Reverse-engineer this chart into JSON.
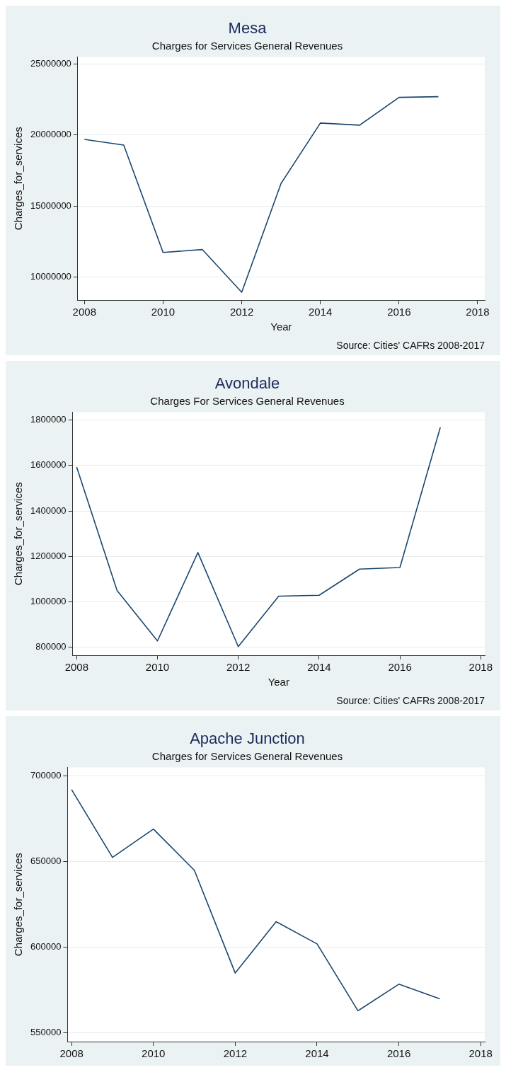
{
  "chart_data": [
    {
      "type": "line",
      "title": "Mesa",
      "subtitle": "Charges for Services General Revenues",
      "xlabel": "Year",
      "ylabel": "Charges_for_services",
      "x": [
        2008,
        2009,
        2010,
        2011,
        2012,
        2013,
        2014,
        2015,
        2016,
        2017
      ],
      "values": [
        19700000,
        19300000,
        11750000,
        11950000,
        8950000,
        16600000,
        20850000,
        20700000,
        22650000,
        22700000
      ],
      "color": "#1a476f",
      "xlim": [
        2007.83,
        2018.18
      ],
      "xticks": [
        2008,
        2010,
        2012,
        2014,
        2016,
        2018
      ],
      "ylim": [
        8400000,
        25500000
      ],
      "yticks": [
        10000000,
        15000000,
        20000000,
        25000000
      ],
      "grid": "y",
      "annotations": [
        "Source: Cities' CAFRs 2008-2017"
      ]
    },
    {
      "type": "line",
      "title": "Avondale",
      "subtitle": "Charges For Services General Revenues",
      "xlabel": "Year",
      "ylabel": "Charges_for_services",
      "x": [
        2008,
        2009,
        2010,
        2011,
        2012,
        2013,
        2014,
        2015,
        2016,
        2017
      ],
      "values": [
        1593000,
        1050000,
        828000,
        1217000,
        803000,
        1025000,
        1029000,
        1144000,
        1151000,
        1768000
      ],
      "color": "#1a476f",
      "xlim": [
        2007.9,
        2018.1
      ],
      "xticks": [
        2008,
        2010,
        2012,
        2014,
        2016,
        2018
      ],
      "ylim": [
        765000,
        1835000
      ],
      "yticks": [
        800000,
        1000000,
        1200000,
        1400000,
        1600000,
        1800000
      ],
      "grid": "y",
      "annotations": [
        "Source: Cities' CAFRs 2008-2017"
      ]
    },
    {
      "type": "line",
      "title": "Apache Junction",
      "subtitle": "Charges for Services General Revenues",
      "ylabel": "Charges_for_services",
      "x": [
        2008,
        2009,
        2010,
        2011,
        2012,
        2013,
        2014,
        2015,
        2016,
        2017
      ],
      "values": [
        692000,
        652500,
        669000,
        645000,
        585000,
        615000,
        602000,
        563000,
        578500,
        570000
      ],
      "color": "#1a476f",
      "xlim": [
        2007.9,
        2018.1
      ],
      "xticks": [
        2008,
        2010,
        2012,
        2014,
        2016,
        2018
      ],
      "ylim": [
        545000,
        705000
      ],
      "yticks": [
        550000,
        600000,
        650000,
        700000
      ],
      "grid": "y"
    }
  ]
}
